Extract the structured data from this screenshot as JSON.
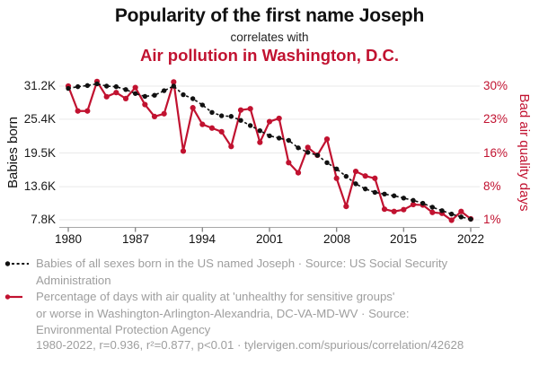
{
  "title": "Popularity of the first name Joseph",
  "subtitle": "correlates with",
  "title2": "Air pollution in Washington, D.C.",
  "colors": {
    "accent_red": "#c11230",
    "series_black": "#111111",
    "legend_gray": "#9e9e9e",
    "grid": "#e9e9e9",
    "axis": "#a8a8a8"
  },
  "chart_data": {
    "type": "line",
    "x": [
      1980,
      1981,
      1982,
      1983,
      1984,
      1985,
      1986,
      1987,
      1988,
      1989,
      1990,
      1991,
      1992,
      1993,
      1994,
      1995,
      1996,
      1997,
      1998,
      1999,
      2000,
      2001,
      2002,
      2003,
      2004,
      2005,
      2006,
      2007,
      2008,
      2009,
      2010,
      2011,
      2012,
      2013,
      2014,
      2015,
      2016,
      2017,
      2018,
      2019,
      2020,
      2021,
      2022
    ],
    "x_ticks": [
      1980,
      1987,
      1994,
      2001,
      2008,
      2015,
      2022
    ],
    "series": [
      {
        "name": "Babies of all sexes born in the US named Joseph",
        "axis": "left",
        "unit": "thousand babies",
        "color": "#111111",
        "style": "dashed-with-dots",
        "values": [
          30.8,
          31.1,
          31.3,
          31.6,
          31.2,
          31.1,
          30.6,
          29.9,
          29.4,
          29.6,
          30.4,
          31.2,
          29.7,
          29.0,
          27.9,
          26.6,
          26.0,
          25.9,
          25.2,
          24.3,
          23.4,
          22.5,
          22.1,
          21.7,
          20.4,
          19.6,
          19.1,
          17.8,
          16.7,
          15.4,
          14.1,
          13.2,
          12.6,
          12.3,
          12.0,
          11.6,
          11.2,
          10.7,
          10.0,
          9.4,
          8.8,
          8.3,
          7.9
        ]
      },
      {
        "name": "Percentage of days with bad air quality in Washington-Arlington-Alexandria, DC-VA-MD-WV",
        "axis": "right",
        "unit": "%",
        "color": "#c11230",
        "style": "solid-with-dots",
        "values": [
          30.0,
          24.6,
          24.6,
          31.0,
          27.7,
          28.6,
          27.3,
          29.7,
          26.0,
          23.4,
          24.0,
          30.9,
          15.9,
          25.3,
          21.7,
          20.9,
          20.1,
          16.9,
          24.8,
          25.1,
          17.8,
          22.3,
          23.0,
          13.4,
          11.2,
          16.7,
          15.0,
          18.5,
          10.0,
          3.9,
          11.5,
          10.5,
          10.0,
          3.3,
          2.8,
          3.2,
          4.3,
          4.2,
          2.6,
          2.4,
          0.9,
          2.8,
          1.2
        ]
      }
    ],
    "left_axis": {
      "label": "Babies born",
      "ticks": [
        "31.2K",
        "25.4K",
        "19.5K",
        "13.6K",
        "7.8K"
      ],
      "tick_values": [
        31.2,
        25.4,
        19.5,
        13.6,
        7.8
      ]
    },
    "right_axis": {
      "label": "Bad air quality days",
      "ticks": [
        "30%",
        "23%",
        "16%",
        "8%",
        "1%"
      ],
      "tick_values": [
        30,
        23,
        16,
        8,
        1
      ]
    },
    "grid": true,
    "legend_position": "bottom"
  },
  "x_tick_labels": [
    "1980",
    "1987",
    "1994",
    "2001",
    "2008",
    "2015",
    "2022"
  ],
  "legend": [
    {
      "marker": "black-dot-dashed-line",
      "text": "Babies of all sexes born in the US named Joseph · Source: US Social Security\nAdministration"
    },
    {
      "marker": "red-dot-solid-line",
      "text": "Percentage of days with air quality at 'unhealthy for sensitive groups'\nor worse in Washington-Arlington-Alexandria, DC-VA-MD-WV · Source:\nEnvironmental Protection Agency"
    }
  ],
  "footer": "1980-2022, r=0.936, r²=0.877, p<0.01 · tylervigen.com/spurious/correlation/42628"
}
